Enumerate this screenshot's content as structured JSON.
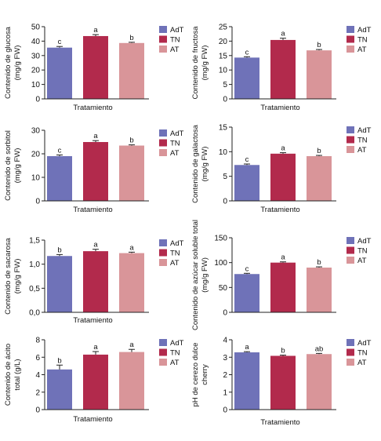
{
  "colors": {
    "AdT": "#6f72b8",
    "TN": "#b22a4c",
    "AT": "#d99599",
    "error_bar": "#222222",
    "axis": "#222222"
  },
  "legend": [
    "AdT",
    "TN",
    "AT"
  ],
  "chart_data": [
    {
      "type": "bar",
      "xlabel": "Tratamiento",
      "ylabel": [
        "Contenido de glucosa",
        "(mg/g FW)"
      ],
      "ylim": [
        0,
        50
      ],
      "yticks": [
        "0",
        "10",
        "20",
        "30",
        "40",
        "50"
      ],
      "categories": [
        "AdT",
        "TN",
        "AT"
      ],
      "values": [
        35.5,
        43.5,
        38.7
      ],
      "errors": [
        0.8,
        1.0,
        0.5
      ],
      "letters": [
        "c",
        "a",
        "b"
      ]
    },
    {
      "type": "bar",
      "xlabel": "Tratamiento",
      "ylabel": [
        "Contenido de fructosa",
        "(mg/g FW)"
      ],
      "ylim": [
        0,
        25
      ],
      "yticks": [
        "0",
        "5",
        "10",
        "15",
        "20",
        "25"
      ],
      "categories": [
        "AdT",
        "TN",
        "AT"
      ],
      "values": [
        14.3,
        20.4,
        16.8
      ],
      "errors": [
        0.3,
        0.6,
        0.3
      ],
      "letters": [
        "c",
        "a",
        "b"
      ]
    },
    {
      "type": "bar",
      "xlabel": "Tratamiento",
      "ylabel": [
        "Contenido de sorbitol",
        "(mg/g FW)"
      ],
      "ylim": [
        0,
        30
      ],
      "yticks": [
        "0",
        "10",
        "20",
        "30"
      ],
      "categories": [
        "AdT",
        "TN",
        "AT"
      ],
      "values": [
        19.0,
        25.0,
        23.5
      ],
      "errors": [
        0.5,
        0.6,
        0.3
      ],
      "letters": [
        "c",
        "a",
        "b"
      ]
    },
    {
      "type": "bar",
      "xlabel": "Tratamiento",
      "ylabel": [
        "Contenido de galactosa",
        "(mg/g FW)"
      ],
      "ylim": [
        0,
        15
      ],
      "yticks": [
        "0",
        "5",
        "10",
        "15"
      ],
      "categories": [
        "AdT",
        "TN",
        "AT"
      ],
      "values": [
        7.3,
        9.6,
        9.1
      ],
      "errors": [
        0.2,
        0.2,
        0.15
      ],
      "letters": [
        "c",
        "a",
        "b"
      ]
    },
    {
      "type": "bar",
      "xlabel": "Tratamiento",
      "ylabel": [
        "Contenido de sacarosa",
        "(mg/g FW)"
      ],
      "ylim": [
        0,
        1.5
      ],
      "yticks": [
        "0,0",
        "0,5",
        "1,0",
        "1,5"
      ],
      "categories": [
        "AdT",
        "TN",
        "AT"
      ],
      "values": [
        1.17,
        1.27,
        1.23
      ],
      "errors": [
        0.03,
        0.04,
        0.02
      ],
      "letters": [
        "b",
        "a",
        "a"
      ]
    },
    {
      "type": "bar",
      "xlabel": "",
      "ylabel": [
        "Contenido de azúcar soluble total",
        "(mg/g FW)"
      ],
      "ylim": [
        0,
        150
      ],
      "yticks": [
        "0",
        "50",
        "100",
        "150"
      ],
      "categories": [
        "AdT",
        "TN",
        "AT"
      ],
      "values": [
        77,
        100,
        90
      ],
      "errors": [
        1.5,
        1.5,
        1.5
      ],
      "letters": [
        "c",
        "a",
        "b"
      ]
    },
    {
      "type": "bar",
      "xlabel": "Tratamiento",
      "ylabel": [
        "Contenido de ácito",
        "total (g/L)"
      ],
      "ylim": [
        0,
        8
      ],
      "yticks": [
        "0",
        "2",
        "4",
        "6",
        "8"
      ],
      "categories": [
        "AdT",
        "TN",
        "AT"
      ],
      "values": [
        4.6,
        6.3,
        6.6
      ],
      "errors": [
        0.5,
        0.35,
        0.3
      ],
      "letters": [
        "b",
        "a",
        "a"
      ]
    },
    {
      "type": "bar",
      "xlabel": "Tratamiento",
      "ylabel": [
        "pH de cerezo dulce",
        "cherry"
      ],
      "ylim": [
        0,
        4
      ],
      "yticks": [
        "0",
        "1",
        "2",
        "3",
        "4"
      ],
      "categories": [
        "AdT",
        "TN",
        "AT"
      ],
      "values": [
        3.28,
        3.08,
        3.18
      ],
      "errors": [
        0.04,
        0.04,
        0.04
      ],
      "letters": [
        "a",
        "b",
        "ab"
      ]
    }
  ]
}
